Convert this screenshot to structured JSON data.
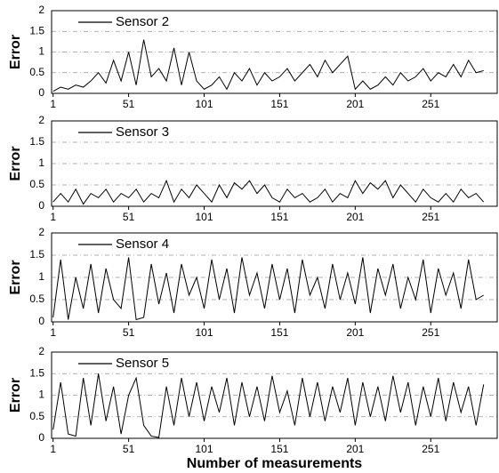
{
  "chart_data": [
    {
      "type": "line",
      "ylabel": "Error",
      "x": [
        1,
        6,
        11,
        16,
        21,
        26,
        31,
        36,
        41,
        46,
        51,
        56,
        61,
        66,
        71,
        76,
        81,
        86,
        91,
        96,
        101,
        106,
        111,
        116,
        121,
        126,
        131,
        136,
        141,
        146,
        151,
        156,
        161,
        166,
        171,
        176,
        181,
        186,
        191,
        196,
        201,
        206,
        211,
        216,
        221,
        226,
        231,
        236,
        241,
        246,
        251,
        256,
        261,
        266,
        271,
        276,
        281,
        286
      ],
      "series": [
        {
          "name": "Sensor 2",
          "color": "#000000",
          "values": [
            0.05,
            0.15,
            0.1,
            0.2,
            0.15,
            0.3,
            0.5,
            0.25,
            0.8,
            0.3,
            1.0,
            0.2,
            1.3,
            0.4,
            0.6,
            0.3,
            1.1,
            0.2,
            1.0,
            0.3,
            0.1,
            0.2,
            0.4,
            0.1,
            0.5,
            0.3,
            0.6,
            0.2,
            0.5,
            0.3,
            0.4,
            0.6,
            0.3,
            0.5,
            0.7,
            0.4,
            0.8,
            0.5,
            0.7,
            0.9,
            0.1,
            0.3,
            0.1,
            0.2,
            0.4,
            0.2,
            0.5,
            0.3,
            0.4,
            0.6,
            0.3,
            0.5,
            0.4,
            0.7,
            0.4,
            0.8,
            0.5,
            0.55
          ]
        }
      ],
      "xlim": [
        0,
        295
      ],
      "xticks": [
        1,
        51,
        101,
        151,
        201,
        251
      ],
      "ylim": [
        0,
        2
      ],
      "yticks": [
        0,
        0.5,
        1,
        1.5,
        2
      ],
      "grid": true
    },
    {
      "type": "line",
      "ylabel": "Error",
      "x": [
        1,
        6,
        11,
        16,
        21,
        26,
        31,
        36,
        41,
        46,
        51,
        56,
        61,
        66,
        71,
        76,
        81,
        86,
        91,
        96,
        101,
        106,
        111,
        116,
        121,
        126,
        131,
        136,
        141,
        146,
        151,
        156,
        161,
        166,
        171,
        176,
        181,
        186,
        191,
        196,
        201,
        206,
        211,
        216,
        221,
        226,
        231,
        236,
        241,
        246,
        251,
        256,
        261,
        266,
        271,
        276,
        281,
        286
      ],
      "series": [
        {
          "name": "Sensor 3",
          "color": "#000000",
          "values": [
            0.1,
            0.3,
            0.1,
            0.4,
            0.05,
            0.3,
            0.2,
            0.4,
            0.1,
            0.3,
            0.2,
            0.4,
            0.1,
            0.3,
            0.2,
            0.6,
            0.1,
            0.4,
            0.2,
            0.5,
            0.3,
            0.1,
            0.5,
            0.2,
            0.55,
            0.4,
            0.6,
            0.3,
            0.5,
            0.2,
            0.1,
            0.4,
            0.2,
            0.3,
            0.1,
            0.2,
            0.4,
            0.1,
            0.3,
            0.2,
            0.6,
            0.3,
            0.55,
            0.4,
            0.6,
            0.2,
            0.5,
            0.3,
            0.1,
            0.4,
            0.2,
            0.1,
            0.3,
            0.1,
            0.4,
            0.2,
            0.3,
            0.1
          ]
        }
      ],
      "xlim": [
        0,
        295
      ],
      "xticks": [
        1,
        51,
        101,
        151,
        201,
        251
      ],
      "ylim": [
        0,
        2
      ],
      "yticks": [
        0,
        0.5,
        1,
        1.5,
        2
      ],
      "grid": true
    },
    {
      "type": "line",
      "ylabel": "Error",
      "x": [
        1,
        6,
        11,
        16,
        21,
        26,
        31,
        36,
        41,
        46,
        51,
        56,
        61,
        66,
        71,
        76,
        81,
        86,
        91,
        96,
        101,
        106,
        111,
        116,
        121,
        126,
        131,
        136,
        141,
        146,
        151,
        156,
        161,
        166,
        171,
        176,
        181,
        186,
        191,
        196,
        201,
        206,
        211,
        216,
        221,
        226,
        231,
        236,
        241,
        246,
        251,
        256,
        261,
        266,
        271,
        276,
        281,
        286
      ],
      "series": [
        {
          "name": "Sensor 4",
          "color": "#000000",
          "values": [
            0.1,
            1.4,
            0.05,
            1.0,
            0.3,
            1.3,
            0.2,
            1.2,
            0.5,
            0.3,
            1.45,
            0.05,
            0.1,
            1.3,
            0.4,
            1.1,
            0.2,
            1.3,
            0.6,
            1.0,
            0.3,
            1.4,
            0.5,
            1.2,
            0.2,
            1.45,
            0.6,
            1.1,
            0.3,
            1.3,
            0.5,
            1.2,
            0.2,
            1.4,
            0.6,
            1.0,
            0.3,
            1.3,
            0.5,
            1.1,
            0.4,
            1.45,
            0.2,
            1.2,
            0.6,
            1.3,
            0.3,
            1.0,
            0.5,
            1.4,
            0.2,
            1.2,
            0.6,
            1.1,
            0.3,
            1.4,
            0.5,
            0.6
          ]
        }
      ],
      "xlim": [
        0,
        295
      ],
      "xticks": [
        1,
        51,
        101,
        151,
        201,
        251
      ],
      "ylim": [
        0,
        2
      ],
      "yticks": [
        0,
        0.5,
        1,
        1.5,
        2
      ],
      "grid": true
    },
    {
      "type": "line",
      "ylabel": "Error",
      "xlabel": "Number of measurements",
      "x": [
        1,
        6,
        11,
        16,
        21,
        26,
        31,
        36,
        41,
        46,
        51,
        56,
        61,
        66,
        71,
        76,
        81,
        86,
        91,
        96,
        101,
        106,
        111,
        116,
        121,
        126,
        131,
        136,
        141,
        146,
        151,
        156,
        161,
        166,
        171,
        176,
        181,
        186,
        191,
        196,
        201,
        206,
        211,
        216,
        221,
        226,
        231,
        236,
        241,
        246,
        251,
        256,
        261,
        266,
        271,
        276,
        281,
        286
      ],
      "series": [
        {
          "name": "Sensor 5",
          "color": "#000000",
          "values": [
            0.2,
            1.3,
            0.1,
            0.05,
            1.4,
            0.3,
            1.5,
            0.4,
            1.2,
            0.1,
            1.0,
            1.4,
            0.3,
            0.05,
            0.02,
            1.2,
            0.3,
            1.4,
            0.5,
            1.3,
            0.4,
            1.2,
            0.6,
            1.4,
            0.3,
            1.3,
            0.5,
            1.2,
            0.4,
            1.45,
            0.6,
            1.1,
            0.3,
            1.4,
            0.5,
            1.3,
            0.4,
            1.2,
            0.6,
            1.4,
            0.3,
            1.3,
            0.5,
            1.2,
            0.4,
            1.45,
            0.6,
            1.3,
            0.3,
            1.2,
            0.5,
            1.4,
            0.4,
            1.3,
            0.6,
            1.2,
            0.3,
            1.25
          ]
        }
      ],
      "xlim": [
        0,
        295
      ],
      "xticks": [
        1,
        51,
        101,
        151,
        201,
        251
      ],
      "ylim": [
        0,
        2
      ],
      "yticks": [
        0,
        0.5,
        1,
        1.5,
        2
      ],
      "grid": true
    }
  ]
}
